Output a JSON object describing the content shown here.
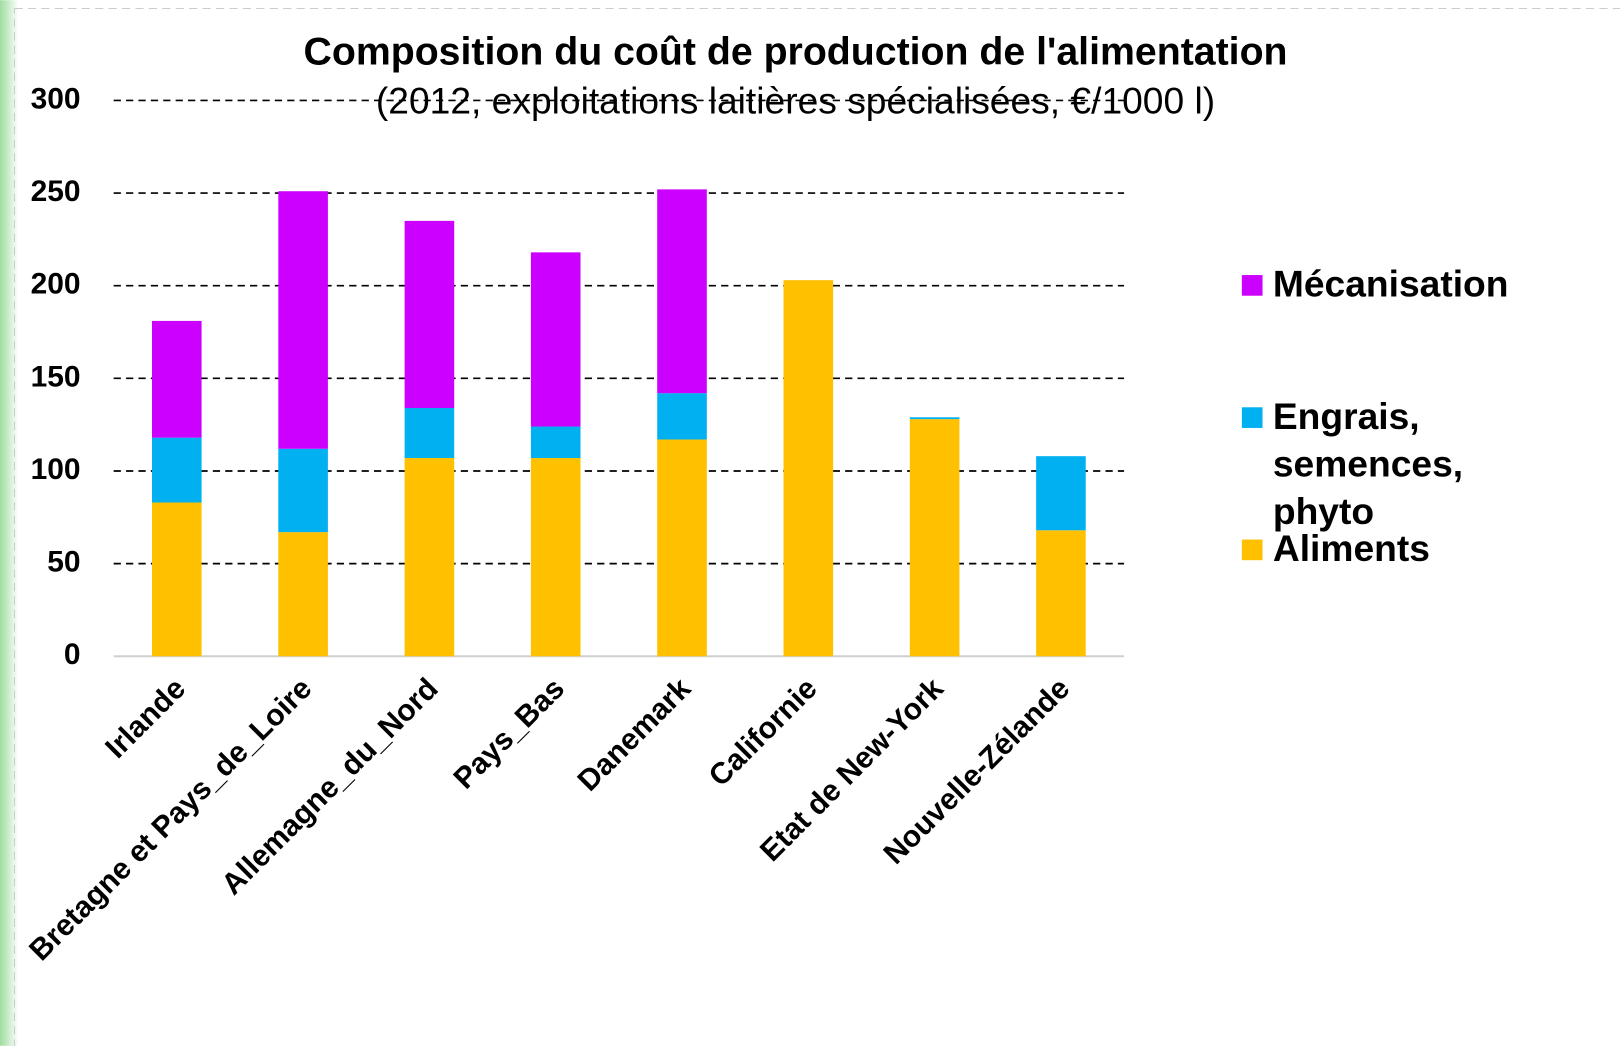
{
  "chart_data": {
    "type": "stacked_bar",
    "title": "Composition du coût de production de l'alimentation",
    "subtitle": "(2012, exploitations laitières spécialisées, €/1000 l)",
    "categories": [
      "Irlande",
      "Bretagne et Pays_de_Loire",
      "Allemagne_du_Nord",
      "Pays_Bas",
      "Danemark",
      "Californie",
      "Etat de New-York",
      "Nouvelle-Zélande"
    ],
    "series": [
      {
        "name": "Aliments",
        "color": "#FFC000",
        "values": [
          83,
          67,
          107,
          107,
          117,
          203,
          128,
          68
        ]
      },
      {
        "name": "Engrais, semences, phyto",
        "color": "#00B0F0",
        "values": [
          35,
          45,
          27,
          17,
          25,
          0,
          1,
          40
        ]
      },
      {
        "name": "Mécanisation",
        "color": "#CC00FF",
        "values": [
          63,
          139,
          101,
          94,
          110,
          0,
          0,
          0
        ]
      }
    ],
    "ylim": [
      0,
      300
    ],
    "yticks": [
      0,
      50,
      100,
      150,
      200,
      250,
      300
    ],
    "grid": true,
    "legend": "right"
  }
}
